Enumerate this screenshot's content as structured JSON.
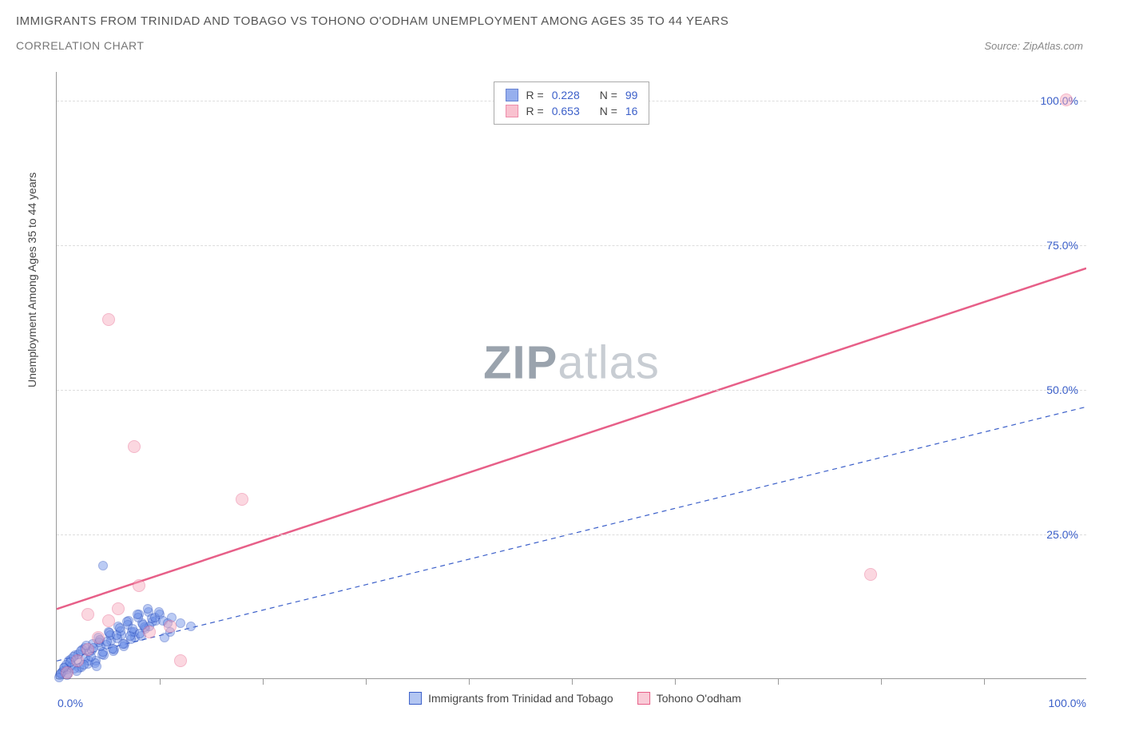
{
  "header": {
    "title": "IMMIGRANTS FROM TRINIDAD AND TOBAGO VS TOHONO O'ODHAM UNEMPLOYMENT AMONG AGES 35 TO 44 YEARS",
    "subtitle": "CORRELATION CHART",
    "source": "Source: ZipAtlas.com"
  },
  "chart": {
    "type": "scatter",
    "ylabel": "Unemployment Among Ages 35 to 44 years",
    "xlim": [
      0,
      100
    ],
    "ylim": [
      0,
      105
    ],
    "xtick_step": 10,
    "ytick_labels": [
      "25.0%",
      "50.0%",
      "75.0%",
      "100.0%"
    ],
    "ytick_values": [
      25,
      50,
      75,
      100
    ],
    "x_origin_label": "0.0%",
    "x_max_label": "100.0%",
    "background_color": "#ffffff",
    "grid_color": "#dddddd",
    "axis_color": "#999999",
    "series": [
      {
        "name": "Immigrants from Trinidad and Tobago",
        "fill": "#6a8ee8",
        "stroke": "#2a4fbf",
        "marker_opacity": 0.45,
        "marker_size": 12,
        "line_style": "dashed",
        "line_color": "#3b5fc9",
        "line_width": 1.2,
        "R": "0.228",
        "N": "99",
        "regression": {
          "x1": 0,
          "y1": 3,
          "x2": 100,
          "y2": 47
        },
        "points": [
          [
            0.5,
            1
          ],
          [
            0.8,
            2
          ],
          [
            1,
            1.5
          ],
          [
            1.2,
            3
          ],
          [
            1.5,
            2.2
          ],
          [
            1.8,
            4
          ],
          [
            2,
            3.2
          ],
          [
            2.2,
            1.8
          ],
          [
            2.5,
            5
          ],
          [
            2.8,
            3.5
          ],
          [
            3,
            2.5
          ],
          [
            3.2,
            4.5
          ],
          [
            3.5,
            6
          ],
          [
            3.8,
            3
          ],
          [
            4,
            7
          ],
          [
            4.3,
            5.5
          ],
          [
            4.6,
            4
          ],
          [
            5,
            8
          ],
          [
            5.3,
            6.5
          ],
          [
            5.6,
            5
          ],
          [
            6,
            9
          ],
          [
            6.3,
            7.5
          ],
          [
            6.6,
            6
          ],
          [
            7,
            10
          ],
          [
            7.3,
            8
          ],
          [
            7.6,
            7
          ],
          [
            8,
            11
          ],
          [
            8.3,
            9.5
          ],
          [
            8.6,
            8.5
          ],
          [
            9,
            9
          ],
          [
            0.3,
            0.5
          ],
          [
            0.6,
            1.2
          ],
          [
            0.9,
            2.3
          ],
          [
            1.1,
            0.8
          ],
          [
            1.4,
            3.3
          ],
          [
            1.7,
            1.6
          ],
          [
            2.1,
            4.2
          ],
          [
            2.4,
            2
          ],
          [
            2.7,
            5.2
          ],
          [
            3.1,
            3.1
          ],
          [
            3.4,
            4.8
          ],
          [
            3.7,
            2.6
          ],
          [
            4.1,
            6.2
          ],
          [
            4.4,
            4.1
          ],
          [
            4.8,
            5.8
          ],
          [
            5.2,
            7.4
          ],
          [
            5.5,
            4.7
          ],
          [
            5.9,
            6.9
          ],
          [
            6.2,
            8.2
          ],
          [
            6.5,
            5.5
          ],
          [
            6.9,
            9.3
          ],
          [
            7.2,
            6.8
          ],
          [
            7.5,
            8
          ],
          [
            7.9,
            10.5
          ],
          [
            8.2,
            7.3
          ],
          [
            8.5,
            8.8
          ],
          [
            8.9,
            11.5
          ],
          [
            9.3,
            9.8
          ],
          [
            9.6,
            10
          ],
          [
            10,
            11
          ],
          [
            1.3,
            2.7
          ],
          [
            1.6,
            3.8
          ],
          [
            1.9,
            1.3
          ],
          [
            2.3,
            4.7
          ],
          [
            2.6,
            2.4
          ],
          [
            2.9,
            5.7
          ],
          [
            3.3,
            3.8
          ],
          [
            3.6,
            5.3
          ],
          [
            3.9,
            2.1
          ],
          [
            4.2,
            6.7
          ],
          [
            4.5,
            4.5
          ],
          [
            4.9,
            6.3
          ],
          [
            5.1,
            7.9
          ],
          [
            5.4,
            5.1
          ],
          [
            5.8,
            7.4
          ],
          [
            6.1,
            8.7
          ],
          [
            6.4,
            6
          ],
          [
            6.8,
            9.8
          ],
          [
            7.1,
            7.3
          ],
          [
            7.4,
            8.5
          ],
          [
            7.8,
            11
          ],
          [
            8.1,
            7.8
          ],
          [
            8.4,
            9.3
          ],
          [
            8.8,
            12
          ],
          [
            9.2,
            10.3
          ],
          [
            9.5,
            10.5
          ],
          [
            9.9,
            11.5
          ],
          [
            10.3,
            10
          ],
          [
            10.8,
            9.5
          ],
          [
            11.2,
            10.5
          ],
          [
            4.5,
            19.5
          ],
          [
            0.2,
            0.2
          ],
          [
            0.4,
            0.9
          ],
          [
            0.7,
            1.8
          ],
          [
            1.0,
            0.6
          ],
          [
            12,
            9.5
          ],
          [
            11,
            8
          ],
          [
            10.5,
            7
          ],
          [
            13,
            9
          ]
        ]
      },
      {
        "name": "Tohono O'odham",
        "fill": "#f7a8bc",
        "stroke": "#e75f88",
        "marker_opacity": 0.45,
        "marker_size": 16,
        "line_style": "solid",
        "line_color": "#e75f88",
        "line_width": 2.5,
        "R": "0.653",
        "N": "16",
        "regression": {
          "x1": 0,
          "y1": 12,
          "x2": 100,
          "y2": 71
        },
        "points": [
          [
            1,
            1
          ],
          [
            2,
            3
          ],
          [
            3,
            5
          ],
          [
            4,
            7
          ],
          [
            5,
            10
          ],
          [
            6,
            12
          ],
          [
            8,
            16
          ],
          [
            3,
            11
          ],
          [
            7.5,
            40
          ],
          [
            5,
            62
          ],
          [
            18,
            31
          ],
          [
            11,
            9
          ],
          [
            12,
            3
          ],
          [
            79,
            18
          ],
          [
            98,
            100
          ],
          [
            9,
            8
          ]
        ]
      }
    ],
    "watermark": {
      "part1": "ZIP",
      "part2": "atlas"
    },
    "legend_bottom": [
      {
        "label": "Immigrants from Trinidad and Tobago",
        "fill": "#b3c6f2",
        "stroke": "#3b5fc9"
      },
      {
        "label": "Tohono O'odham",
        "fill": "#f9cbd7",
        "stroke": "#e75f88"
      }
    ]
  }
}
